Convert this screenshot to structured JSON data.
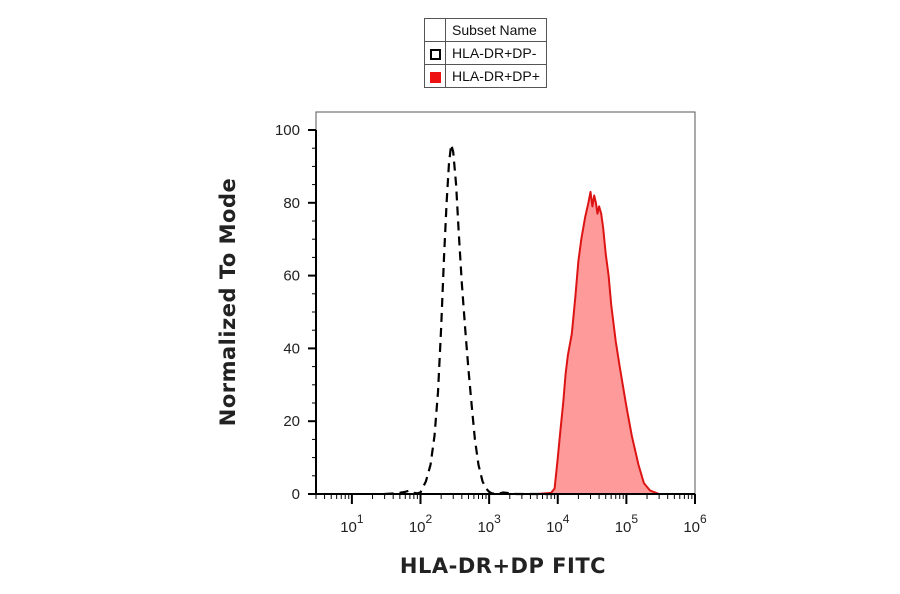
{
  "chart_data": {
    "type": "area",
    "title": "",
    "xlabel": "HLA-DR+DP FITC",
    "ylabel": "Normalized To Mode",
    "x_scale": "log",
    "xlim": [
      3,
      1000000
    ],
    "ylim": [
      0,
      100
    ],
    "x_ticks": [
      {
        "value": 10,
        "base": "10",
        "exp": "1"
      },
      {
        "value": 100,
        "base": "10",
        "exp": "2"
      },
      {
        "value": 1000,
        "base": "10",
        "exp": "3"
      },
      {
        "value": 10000,
        "base": "10",
        "exp": "4"
      },
      {
        "value": 100000,
        "base": "10",
        "exp": "5"
      },
      {
        "value": 1000000,
        "base": "10",
        "exp": "6"
      }
    ],
    "y_ticks": [
      0,
      20,
      40,
      60,
      80,
      100
    ],
    "legend": {
      "position": "top-center",
      "header": "Subset Name",
      "entries": [
        "HLA-DR+DP-",
        "HLA-DR+DP+"
      ]
    },
    "grid": false,
    "series": [
      {
        "name": "HLA-DR+DP-",
        "color": "#000000",
        "style": "dashed-outline",
        "x": [
          30,
          45,
          60,
          70,
          80,
          90,
          100,
          120,
          140,
          160,
          180,
          200,
          220,
          240,
          260,
          280,
          300,
          330,
          360,
          400,
          450,
          500,
          560,
          620,
          700,
          800,
          900,
          1000,
          1100,
          1300,
          1600,
          2500,
          5000,
          10000
        ],
        "y": [
          0,
          0.2,
          0.6,
          1,
          0.3,
          0.2,
          0.4,
          3.5,
          8,
          16,
          28,
          46,
          65,
          80,
          91,
          96,
          94,
          85,
          72,
          58,
          45,
          34,
          24,
          15,
          8,
          3.5,
          1.5,
          0.6,
          0.2,
          0,
          0.4,
          0,
          0,
          0
        ]
      },
      {
        "name": "HLA-DR+DP+",
        "color": "#dd1414",
        "fill": "#ff9a9a",
        "style": "filled",
        "x": [
          5000,
          8000,
          9000,
          10000,
          11000,
          12000,
          13000,
          14000,
          16000,
          18000,
          20000,
          22000,
          25000,
          28000,
          30000,
          32000,
          34000,
          36000,
          38000,
          40000,
          43000,
          46000,
          50000,
          55000,
          60000,
          70000,
          80000,
          100000,
          120000,
          150000,
          180000,
          220000,
          300000,
          500000
        ],
        "y": [
          0,
          0.3,
          1.5,
          10,
          18,
          25,
          33,
          38,
          44,
          54,
          64,
          70,
          76,
          80,
          83,
          79,
          82,
          80,
          77,
          79,
          77,
          73,
          66,
          60,
          52,
          42,
          35,
          24,
          16,
          8,
          3,
          1,
          0,
          0
        ]
      }
    ]
  }
}
